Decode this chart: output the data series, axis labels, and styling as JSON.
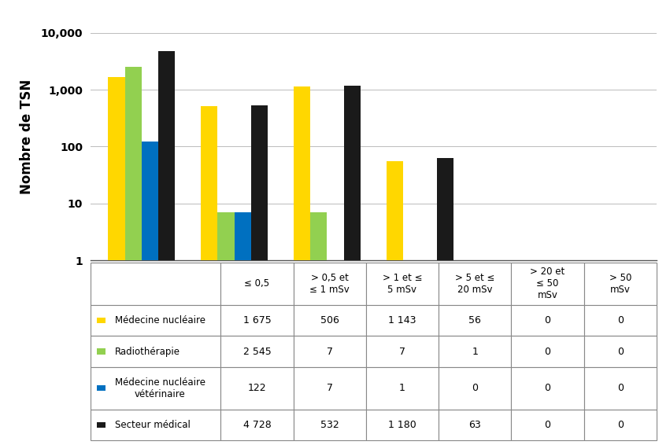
{
  "categories": [
    "≤ 0,5",
    "> 0,5 et\n≤ 1 mSv",
    "> 1 et ≤\n5 mSv",
    "> 5 et ≤\n20 mSv",
    "> 20 et\n≤ 50\nmSv",
    "> 50\nmSv"
  ],
  "series": [
    {
      "label": "Médecine nucléaire",
      "color": "#FFD700",
      "values": [
        1675,
        506,
        1143,
        56,
        0,
        0
      ]
    },
    {
      "label": "Radiothérapie",
      "color": "#92D050",
      "values": [
        2545,
        7,
        7,
        1,
        0,
        0
      ]
    },
    {
      "label": "Médecine nucléaire\nvétérinaire",
      "color": "#0070C0",
      "values": [
        122,
        7,
        1,
        0,
        0,
        0
      ]
    },
    {
      "label": "Secteur médical",
      "color": "#1A1A1A",
      "values": [
        4728,
        532,
        1180,
        63,
        0,
        0
      ]
    }
  ],
  "ylabel": "Nombre de TSN",
  "ylim_min": 1,
  "ylim_max": 10000,
  "yticks": [
    1,
    10,
    100,
    1000,
    10000
  ],
  "ytick_labels": [
    "1",
    "10",
    "100",
    "1,000",
    "10,000"
  ],
  "table_rows": [
    {
      "label": "Médecine nucléaire",
      "values": [
        "1 675",
        "506",
        "1 143",
        "56",
        "0",
        "0"
      ]
    },
    {
      "label": "Radiothérapie",
      "values": [
        "2 545",
        "7",
        "7",
        "1",
        "0",
        "0"
      ]
    },
    {
      "label": "Médecine nucléaire\nvétérinaire",
      "values": [
        "122",
        "7",
        "1",
        "0",
        "0",
        "0"
      ]
    },
    {
      "label": "Secteur médical",
      "values": [
        "4 728",
        "532",
        "1 180",
        "63",
        "0",
        "0"
      ]
    }
  ],
  "legend_colors": [
    "#FFD700",
    "#92D050",
    "#0070C0",
    "#1A1A1A"
  ],
  "bar_width": 0.18,
  "background_color": "#FFFFFF",
  "grid_color": "#BBBBBB",
  "border_color": "#888888"
}
